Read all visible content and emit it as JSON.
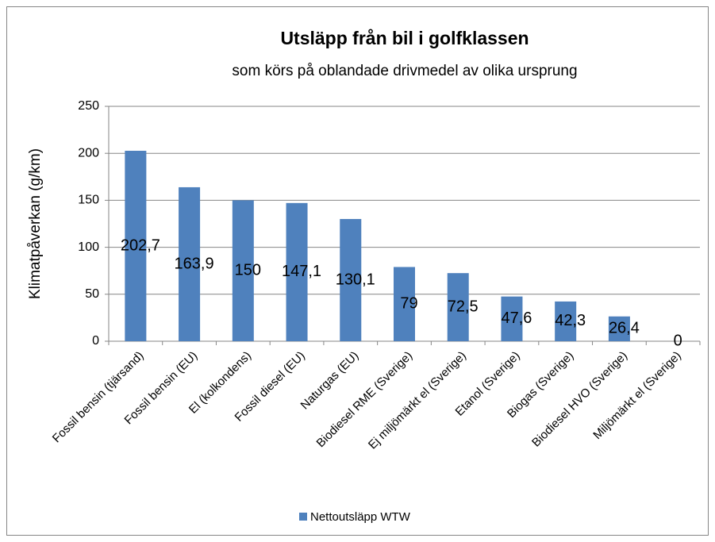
{
  "chart_data": {
    "type": "bar",
    "title": "Utsläpp från bil i golfklassen",
    "subtitle": "som körs på oblandade drivmedel av olika ursprung",
    "y_label": "Klimatpåverkan (g/km)",
    "categories": [
      "Fossil bensin (tjärsand)",
      "Fossil bensin (EU)",
      "El (kolkondens)",
      "Fossil diesel (EU)",
      "Naturgas (EU)",
      "Biodiesel RME (Sverige)",
      "Ej miljömärkt el (Sverige)",
      "Etanol (Sverige)",
      "Biogas (Sverige)",
      "Biodiesel HVO (Sverige)",
      "Miljömärkt el (Sverige)"
    ],
    "series": [
      {
        "name": "Nettoutsläpp WTW",
        "color": "#4f81bd",
        "values": [
          202.7,
          163.9,
          150,
          147.1,
          130.1,
          79,
          72.5,
          47.6,
          42.3,
          26.4,
          0
        ],
        "value_labels": [
          "202,7",
          "163,9",
          "150",
          "147,1",
          "130,1",
          "79",
          "72,5",
          "47,6",
          "42,3",
          "26,4",
          "0"
        ]
      }
    ],
    "ylim": [
      0,
      250
    ],
    "yticks": [
      0,
      50,
      100,
      150,
      200,
      250
    ],
    "grid": true,
    "legend": "bottom"
  }
}
